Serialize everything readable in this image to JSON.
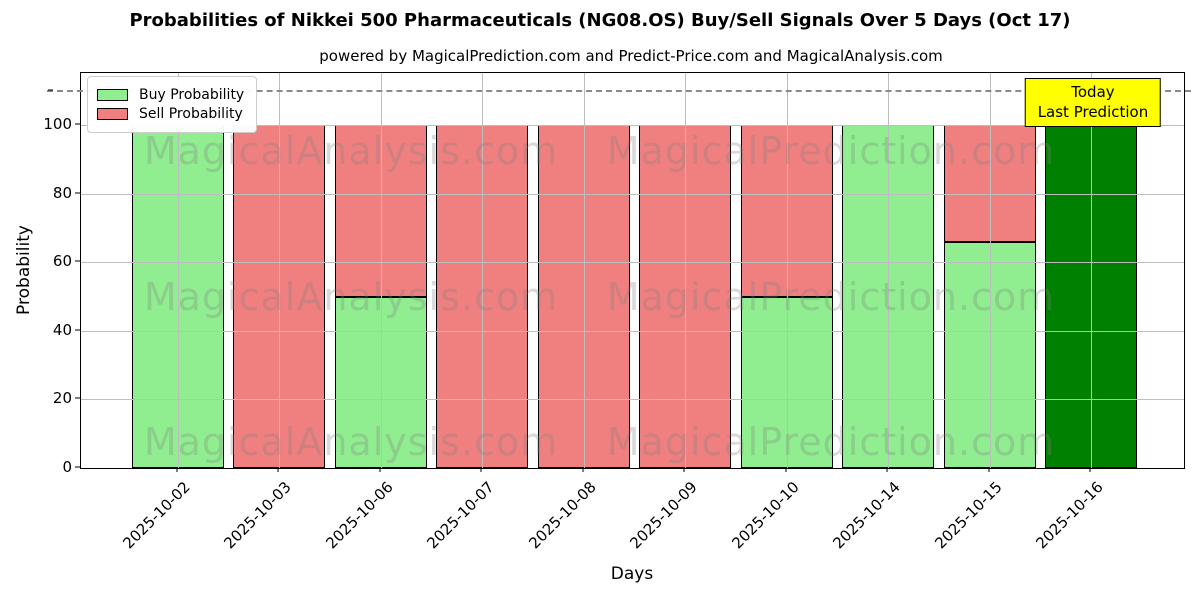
{
  "chart": {
    "title": "Probabilities of Nikkei 500 Pharmaceuticals (NG08.OS) Buy/Sell Signals Over 5 Days (Oct 17)",
    "subtitle": "powered by MagicalPrediction.com and Predict-Price.com and MagicalAnalysis.com",
    "xlabel": "Days",
    "ylabel": "Probability"
  },
  "legend": {
    "items": [
      {
        "label": "Buy Probability",
        "color": "#90EE90"
      },
      {
        "label": "Sell Probability",
        "color": "#F08080"
      }
    ]
  },
  "annotation": {
    "line1": "Today",
    "line2": "Last Prediction",
    "bg_color": "#FFFF00"
  },
  "watermarks": {
    "left": "MagicalAnalysis.com",
    "right": "MagicalPrediction.com"
  },
  "chart_data": {
    "type": "bar",
    "stacked": true,
    "categories": [
      "2025-10-02",
      "2025-10-03",
      "2025-10-06",
      "2025-10-07",
      "2025-10-08",
      "2025-10-09",
      "2025-10-10",
      "2025-10-14",
      "2025-10-15",
      "2025-10-16"
    ],
    "series": [
      {
        "name": "Buy Probability",
        "color": "#90EE90",
        "values": [
          100,
          0,
          50,
          0,
          0,
          0,
          50,
          100,
          66,
          100
        ]
      },
      {
        "name": "Sell Probability",
        "color": "#F08080",
        "values": [
          0,
          100,
          50,
          100,
          100,
          100,
          50,
          0,
          34,
          0
        ]
      }
    ],
    "today_index": 9,
    "today_color": "#008000",
    "title": "Probabilities of Nikkei 500 Pharmaceuticals (NG08.OS) Buy/Sell Signals Over 5 Days (Oct 17)",
    "xlabel": "Days",
    "ylabel": "Probability",
    "yticks": [
      0,
      20,
      40,
      60,
      80,
      100
    ],
    "ylim": [
      0,
      115
    ],
    "threshold_line": {
      "y": 110,
      "style": "dashed",
      "color": "#8a8a8a"
    },
    "grid": true,
    "legend_position": "upper left"
  }
}
